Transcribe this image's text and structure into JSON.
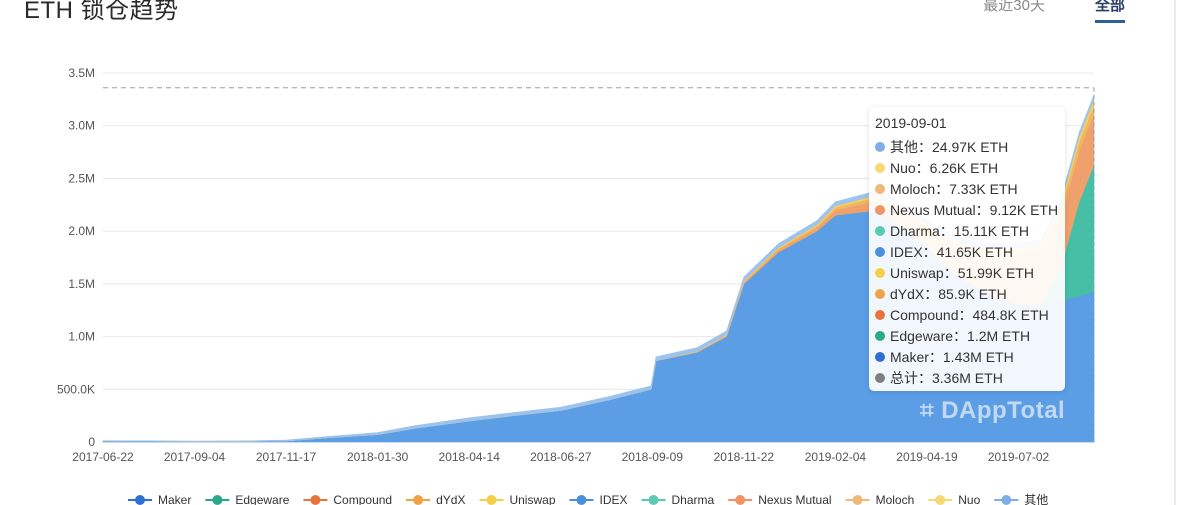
{
  "header": {
    "title": "ETH 锁仓趋势",
    "tabs": [
      {
        "label": "最近30天",
        "active": false
      },
      {
        "label": "全部",
        "active": true
      }
    ]
  },
  "chart_data": {
    "type": "area",
    "stacked": true,
    "title": "",
    "xlabel": "",
    "ylabel": "",
    "x_ticks": [
      "2017-06-22",
      "2017-09-04",
      "2017-11-17",
      "2018-01-30",
      "2018-04-14",
      "2018-06-27",
      "2018-09-09",
      "2018-11-22",
      "2019-02-04",
      "2019-04-19",
      "2019-07-02"
    ],
    "y_ticks": [
      "0",
      "500.0K",
      "1.0M",
      "1.5M",
      "2.0M",
      "2.5M",
      "3.0M",
      "3.5M"
    ],
    "ylim": [
      0,
      3500000
    ],
    "xlim": [
      "2017-06-22",
      "2019-09-01"
    ],
    "grid": true,
    "legend_position": "bottom",
    "reference_line": {
      "value": 3360000,
      "style": "dashed"
    },
    "dates": [
      "2017-06-22",
      "2017-08-01",
      "2017-09-04",
      "2017-10-15",
      "2017-11-17",
      "2017-12-20",
      "2018-01-30",
      "2018-03-01",
      "2018-04-14",
      "2018-05-20",
      "2018-06-27",
      "2018-08-05",
      "2018-09-08",
      "2018-09-12",
      "2018-10-15",
      "2018-11-08",
      "2018-11-22",
      "2018-12-20",
      "2019-01-20",
      "2019-02-04",
      "2019-03-10",
      "2019-04-19",
      "2019-05-10",
      "2019-06-01",
      "2019-06-20",
      "2019-07-02",
      "2019-07-20",
      "2019-08-05",
      "2019-08-20",
      "2019-09-01"
    ],
    "series": [
      {
        "name": "Maker",
        "color": "#5b9ee6",
        "values": [
          10000,
          8000,
          5000,
          5000,
          10000,
          40000,
          70000,
          130000,
          200000,
          250000,
          300000,
          400000,
          500000,
          770000,
          850000,
          1000000,
          1500000,
          1800000,
          2000000,
          2150000,
          2200000,
          1850000,
          1600000,
          1450000,
          1350000,
          1300000,
          1300000,
          1350000,
          1380000,
          1430000
        ]
      },
      {
        "name": "Edgeware",
        "color": "#47bfa6",
        "values": [
          0,
          0,
          0,
          0,
          0,
          0,
          0,
          0,
          0,
          0,
          0,
          0,
          0,
          0,
          0,
          0,
          0,
          0,
          0,
          0,
          0,
          0,
          0,
          0,
          0,
          0,
          0,
          300000,
          900000,
          1200000
        ]
      },
      {
        "name": "Compound",
        "color": "#f0a06c",
        "values": [
          0,
          0,
          0,
          0,
          0,
          0,
          0,
          0,
          0,
          0,
          0,
          0,
          0,
          2000,
          4000,
          8000,
          12000,
          20000,
          30000,
          50000,
          90000,
          150000,
          230000,
          300000,
          380000,
          420000,
          450000,
          470000,
          480000,
          484800
        ]
      },
      {
        "name": "dYdX",
        "color": "#f1b75e",
        "values": [
          0,
          0,
          0,
          0,
          0,
          0,
          0,
          0,
          0,
          0,
          0,
          0,
          0,
          0,
          2000,
          5000,
          10000,
          15000,
          20000,
          25000,
          35000,
          45000,
          55000,
          65000,
          70000,
          75000,
          80000,
          83000,
          85000,
          85900
        ]
      },
      {
        "name": "Uniswap",
        "color": "#f6cf62",
        "values": [
          0,
          0,
          0,
          0,
          0,
          0,
          0,
          0,
          0,
          0,
          0,
          0,
          0,
          0,
          3000,
          5000,
          8000,
          10000,
          12000,
          15000,
          20000,
          25000,
          30000,
          35000,
          40000,
          45000,
          48000,
          50000,
          51000,
          51990
        ]
      },
      {
        "name": "IDEX",
        "color": "#9cc3ee",
        "values": [
          2000,
          3000,
          4000,
          6000,
          8000,
          12000,
          20000,
          25000,
          30000,
          30000,
          30000,
          32000,
          33000,
          35000,
          35000,
          36000,
          36000,
          37000,
          38000,
          38000,
          39000,
          40000,
          40000,
          40000,
          41000,
          41000,
          41500,
          41600,
          41650,
          41650
        ]
      }
    ],
    "legend": [
      {
        "name": "Maker",
        "color": "#2f6fd1"
      },
      {
        "name": "Edgeware",
        "color": "#2aa88a"
      },
      {
        "name": "Compound",
        "color": "#e8743b"
      },
      {
        "name": "dYdX",
        "color": "#efa346"
      },
      {
        "name": "Uniswap",
        "color": "#f6cf4a"
      },
      {
        "name": "IDEX",
        "color": "#4a8fdc"
      },
      {
        "name": "Dharma",
        "color": "#5cc9b5"
      },
      {
        "name": "Nexus Mutual",
        "color": "#ee9466"
      },
      {
        "name": "Moloch",
        "color": "#f0b877"
      },
      {
        "name": "Nuo",
        "color": "#f7d774"
      },
      {
        "name": "其他",
        "color": "#7eaee6"
      }
    ],
    "tooltip": {
      "date": "2019-09-01",
      "rows": [
        {
          "label": "其他：24.97K ETH",
          "color": "#7eaee6"
        },
        {
          "label": "Nuo：6.26K ETH",
          "color": "#f7d774"
        },
        {
          "label": "Moloch：7.33K ETH",
          "color": "#f0b877"
        },
        {
          "label": "Nexus Mutual：9.12K ETH",
          "color": "#ee9466"
        },
        {
          "label": "Dharma：15.11K ETH",
          "color": "#5cc9b5"
        },
        {
          "label": "IDEX：41.65K ETH",
          "color": "#4a8fdc"
        },
        {
          "label": "Uniswap：51.99K ETH",
          "color": "#f6cf4a"
        },
        {
          "label": "dYdX：85.9K ETH",
          "color": "#efa346"
        },
        {
          "label": "Compound：484.8K ETH",
          "color": "#e8743b"
        },
        {
          "label": "Edgeware：1.2M ETH",
          "color": "#2aa88a"
        },
        {
          "label": "Maker：1.43M ETH",
          "color": "#2f6fd1"
        },
        {
          "label": "总计：3.36M ETH",
          "color": "#7f7f7f"
        }
      ]
    },
    "watermark": "DAppTotal"
  }
}
